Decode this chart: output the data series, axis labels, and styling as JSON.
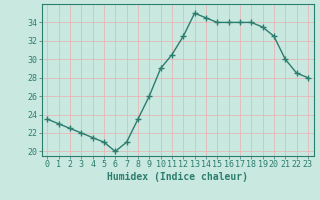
{
  "x": [
    0,
    1,
    2,
    3,
    4,
    5,
    6,
    7,
    8,
    9,
    10,
    11,
    12,
    13,
    14,
    15,
    16,
    17,
    18,
    19,
    20,
    21,
    22,
    23
  ],
  "y": [
    23.5,
    23.0,
    22.5,
    22.0,
    21.5,
    21.0,
    20.0,
    21.0,
    23.5,
    26.0,
    29.0,
    30.5,
    32.5,
    35.0,
    34.5,
    34.0,
    34.0,
    34.0,
    34.0,
    33.5,
    32.5,
    30.0,
    28.5,
    28.0
  ],
  "line_color": "#2d7d6e",
  "marker": "+",
  "marker_size": 4,
  "line_width": 1.0,
  "xlabel": "Humidex (Indice chaleur)",
  "xlabel_fontsize": 7,
  "ylim": [
    19.5,
    36
  ],
  "xlim": [
    -0.5,
    23.5
  ],
  "yticks": [
    20,
    22,
    24,
    26,
    28,
    30,
    32,
    34
  ],
  "xticks": [
    0,
    1,
    2,
    3,
    4,
    5,
    6,
    7,
    8,
    9,
    10,
    11,
    12,
    13,
    14,
    15,
    16,
    17,
    18,
    19,
    20,
    21,
    22,
    23
  ],
  "background_color": "#c8e8e0",
  "grid_color": "#e8b0b0",
  "tick_color": "#2d7d6e",
  "tick_fontsize": 6,
  "grid_linewidth": 0.5,
  "spine_color": "#2d7d6e"
}
